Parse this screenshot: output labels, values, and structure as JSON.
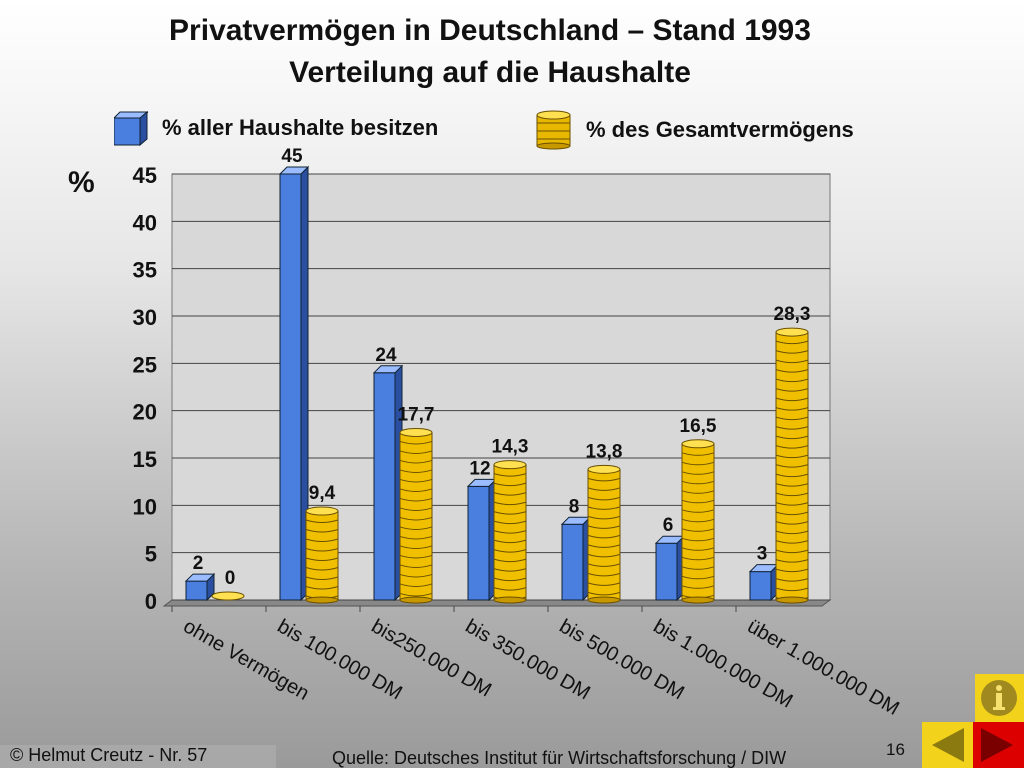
{
  "title_line1": "Privatvermögen in Deutschland – Stand 1993",
  "title_line2": "Verteilung auf die Haushalte",
  "footer": {
    "copyright": "©  Helmut Creutz - Nr. 57",
    "source": "Quelle: Deutsches Institut für Wirtschaftsforschung / DIW",
    "page_number": "16"
  },
  "chart_data": {
    "type": "bar",
    "title": "Privatvermögen in Deutschland – Stand 1993 / Verteilung auf die Haushalte",
    "ylabel": "%",
    "ylim": [
      0,
      45
    ],
    "yticks": [
      "0",
      "5",
      "10",
      "15",
      "20",
      "25",
      "30",
      "35",
      "40",
      "45"
    ],
    "categories": [
      "ohne Vermögen",
      "bis 100.000 DM",
      "bis250.000 DM",
      "bis 350.000 DM",
      "bis 500.000 DM",
      "bis 1.000.000 DM",
      "über 1.000.000 DM"
    ],
    "series": [
      {
        "name": "% aller Haushalte besitzen",
        "color": "#4a7fe0",
        "values": [
          2,
          45,
          24,
          12,
          8,
          6,
          3
        ],
        "labels": [
          "2",
          "45",
          "24",
          "12",
          "8",
          "6",
          "3"
        ]
      },
      {
        "name": "% des Gesamtvermögens",
        "color": "#f0c000",
        "values": [
          0,
          9.4,
          17.7,
          14.3,
          13.8,
          16.5,
          28.3
        ],
        "labels": [
          "0",
          "9,4",
          "17,7",
          "14,3",
          "13,8",
          "16,5",
          "28,3"
        ]
      }
    ],
    "grid": true,
    "legend": "top"
  }
}
